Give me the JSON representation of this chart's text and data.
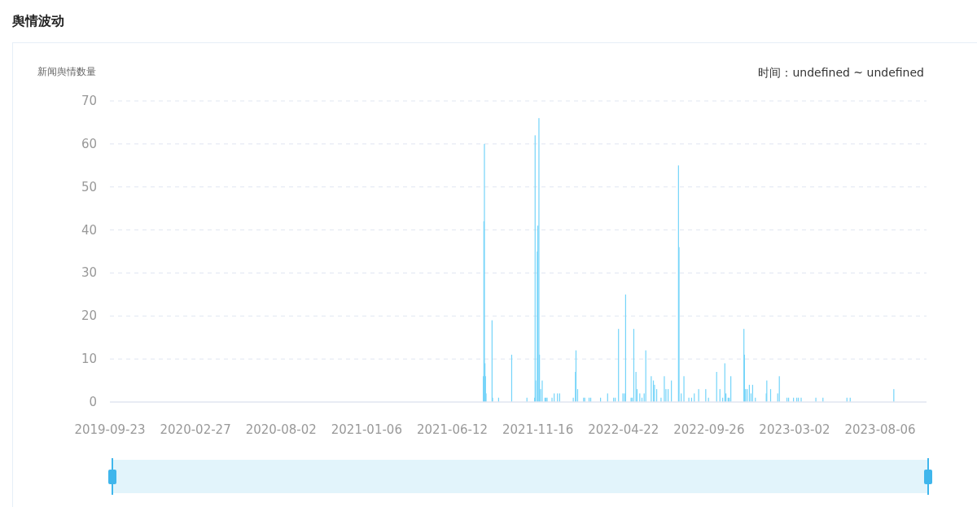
{
  "chart_data": {
    "type": "bar",
    "title": "舆情波动",
    "ylabel": "新闻舆情数量",
    "annotations": [
      "时间：undefined ~ undefined"
    ],
    "color": "#74d4f9",
    "grid": "y",
    "xlim": [
      "2019-09-23",
      "2023-10-30"
    ],
    "xticks": [
      "2019-09-23",
      "2020-02-27",
      "2020-08-02",
      "2021-01-06",
      "2021-06-12",
      "2021-11-16",
      "2022-04-22",
      "2022-09-26",
      "2023-03-02",
      "2023-08-06"
    ],
    "ylim": [
      0,
      70
    ],
    "yticks": [
      0,
      10,
      20,
      30,
      40,
      50,
      60,
      70
    ],
    "x": [
      "2021-08-08",
      "2021-08-09",
      "2021-08-10",
      "2021-08-11",
      "2021-08-12",
      "2021-08-13",
      "2021-08-24",
      "2021-08-25",
      "2021-09-05",
      "2021-09-29",
      "2021-10-27",
      "2021-11-10",
      "2021-11-11",
      "2021-11-12",
      "2021-11-15",
      "2021-11-16",
      "2021-11-18",
      "2021-11-19",
      "2021-11-21",
      "2021-11-24",
      "2021-11-29",
      "2021-12-01",
      "2021-12-03",
      "2021-12-12",
      "2021-12-16",
      "2021-12-22",
      "2021-12-26",
      "2022-01-20",
      "2022-01-24",
      "2022-01-25",
      "2022-01-28",
      "2022-02-08",
      "2022-02-10",
      "2022-02-18",
      "2022-02-21",
      "2022-03-11",
      "2022-03-24",
      "2022-04-04",
      "2022-04-07",
      "2022-04-13",
      "2022-04-21",
      "2022-04-24",
      "2022-04-26",
      "2022-05-06",
      "2022-05-08",
      "2022-05-11",
      "2022-05-15",
      "2022-05-17",
      "2022-05-22",
      "2022-05-26",
      "2022-05-30",
      "2022-06-02",
      "2022-06-12",
      "2022-06-16",
      "2022-06-18",
      "2022-06-22",
      "2022-06-30",
      "2022-07-06",
      "2022-07-09",
      "2022-07-13",
      "2022-07-19",
      "2022-08-01",
      "2022-08-02",
      "2022-08-06",
      "2022-08-11",
      "2022-08-20",
      "2022-08-25",
      "2022-08-30",
      "2022-09-07",
      "2022-09-20",
      "2022-09-25",
      "2022-10-10",
      "2022-10-16",
      "2022-10-21",
      "2022-10-25",
      "2022-10-27",
      "2022-10-31",
      "2022-11-02",
      "2022-11-05",
      "2022-11-29",
      "2022-11-30",
      "2022-12-02",
      "2022-12-05",
      "2022-12-09",
      "2022-12-12",
      "2022-12-15",
      "2022-12-20",
      "2023-01-09",
      "2023-01-10",
      "2023-01-17",
      "2023-01-30",
      "2023-02-02",
      "2023-02-16",
      "2023-02-19",
      "2023-02-28",
      "2023-03-06",
      "2023-03-09",
      "2023-03-14",
      "2023-04-10",
      "2023-04-23",
      "2023-06-06",
      "2023-06-12",
      "2023-08-31"
    ],
    "values": [
      6,
      42,
      60,
      9,
      6,
      2,
      19,
      1,
      1,
      11,
      1,
      1,
      62,
      5,
      35,
      41,
      66,
      11,
      3,
      5,
      1,
      1,
      1,
      1,
      2,
      2,
      2,
      1,
      7,
      12,
      3,
      1,
      1,
      1,
      1,
      1,
      2,
      1,
      1,
      17,
      2,
      2,
      25,
      1,
      1,
      17,
      7,
      3,
      2,
      1,
      2,
      12,
      6,
      5,
      4,
      3,
      1,
      6,
      3,
      3,
      5,
      55,
      36,
      2,
      6,
      1,
      1,
      2,
      3,
      3,
      1,
      7,
      3,
      1,
      9,
      2,
      1,
      1,
      6,
      17,
      11,
      3,
      3,
      4,
      2,
      4,
      1,
      2,
      5,
      3,
      2,
      6,
      1,
      1,
      1,
      1,
      1,
      1,
      1,
      1,
      1,
      1,
      3
    ]
  }
}
